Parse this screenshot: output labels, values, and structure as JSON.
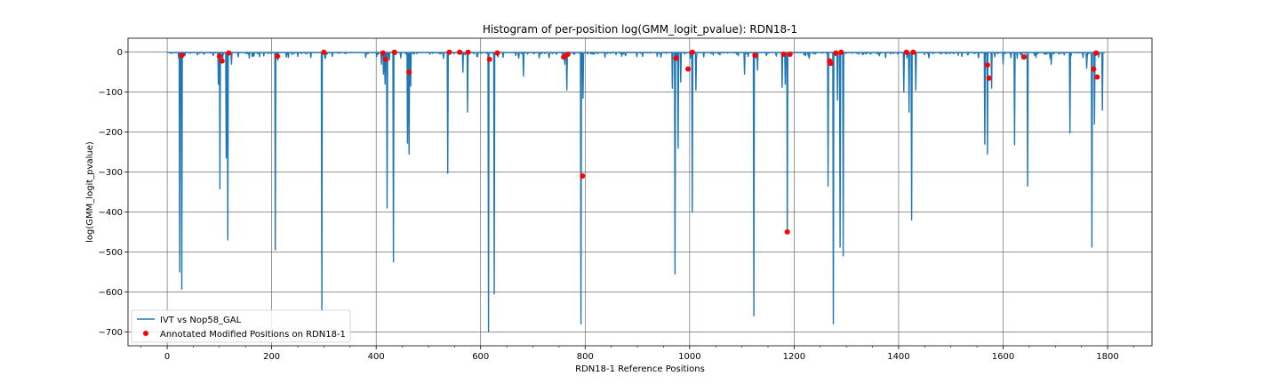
{
  "chart_data": {
    "type": "line",
    "title": "Histogram of per-position log(GMM_logit_pvalue): RDN18-1",
    "xlabel": "RDN18-1 Reference Positions",
    "ylabel": "log(GMM_logit_pvalue)",
    "xlim": [
      -75,
      1885
    ],
    "ylim": [
      -735,
      35
    ],
    "xticks": [
      0,
      200,
      400,
      600,
      800,
      1000,
      1200,
      1400,
      1600,
      1800
    ],
    "yticks": [
      0,
      -100,
      -200,
      -300,
      -400,
      -500,
      -600,
      -700
    ],
    "grid": true,
    "legend_position": "lower-left",
    "series": [
      {
        "name": "IVT vs Nop58_GAL",
        "color": "#1f77b4",
        "baseline": -1,
        "spikes": [
          [
            24,
            -550
          ],
          [
            28,
            -593
          ],
          [
            31,
            -12
          ],
          [
            98,
            -80
          ],
          [
            101,
            -342
          ],
          [
            106,
            -25
          ],
          [
            113,
            -265
          ],
          [
            116,
            -470
          ],
          [
            123,
            -30
          ],
          [
            207,
            -495
          ],
          [
            212,
            -20
          ],
          [
            228,
            -12
          ],
          [
            296,
            -645
          ],
          [
            302,
            -15
          ],
          [
            410,
            -30
          ],
          [
            414,
            -55
          ],
          [
            417,
            -80
          ],
          [
            421,
            -390
          ],
          [
            425,
            -20
          ],
          [
            433,
            -525
          ],
          [
            460,
            -228
          ],
          [
            463,
            -255
          ],
          [
            466,
            -85
          ],
          [
            537,
            -303
          ],
          [
            566,
            -50
          ],
          [
            575,
            -150
          ],
          [
            615,
            -700
          ],
          [
            626,
            -605
          ],
          [
            682,
            -60
          ],
          [
            761,
            -30
          ],
          [
            765,
            -95
          ],
          [
            792,
            -680
          ],
          [
            796,
            -115
          ],
          [
            967,
            -90
          ],
          [
            972,
            -555
          ],
          [
            978,
            -240
          ],
          [
            983,
            -75
          ],
          [
            1005,
            -400
          ],
          [
            1012,
            -95
          ],
          [
            1105,
            -55
          ],
          [
            1123,
            -660
          ],
          [
            1130,
            -45
          ],
          [
            1177,
            -88
          ],
          [
            1183,
            -80
          ],
          [
            1187,
            -450
          ],
          [
            1265,
            -335
          ],
          [
            1275,
            -680
          ],
          [
            1283,
            -120
          ],
          [
            1288,
            -488
          ],
          [
            1294,
            -510
          ],
          [
            1410,
            -100
          ],
          [
            1420,
            -150
          ],
          [
            1425,
            -420
          ],
          [
            1433,
            -95
          ],
          [
            1565,
            -230
          ],
          [
            1570,
            -255
          ],
          [
            1578,
            -90
          ],
          [
            1600,
            -30
          ],
          [
            1622,
            -232
          ],
          [
            1636,
            -15
          ],
          [
            1647,
            -335
          ],
          [
            1692,
            -30
          ],
          [
            1728,
            -202
          ],
          [
            1760,
            -40
          ],
          [
            1770,
            -488
          ],
          [
            1775,
            -180
          ],
          [
            1790,
            -145
          ]
        ]
      },
      {
        "name": "Annotated Modified Positions on RDN18-1",
        "color": "#ff0000",
        "points": [
          [
            28,
            -8
          ],
          [
            100,
            -10
          ],
          [
            105,
            -22
          ],
          [
            118,
            -2
          ],
          [
            211,
            -10
          ],
          [
            300,
            0
          ],
          [
            413,
            -2
          ],
          [
            418,
            -18
          ],
          [
            435,
            0
          ],
          [
            463,
            -50
          ],
          [
            540,
            0
          ],
          [
            560,
            0
          ],
          [
            576,
            0
          ],
          [
            617,
            -18
          ],
          [
            632,
            -2
          ],
          [
            759,
            -12
          ],
          [
            767,
            -5
          ],
          [
            795,
            -310
          ],
          [
            974,
            -15
          ],
          [
            997,
            -42
          ],
          [
            1005,
            0
          ],
          [
            1125,
            -8
          ],
          [
            1180,
            -5
          ],
          [
            1187,
            -450
          ],
          [
            1192,
            -5
          ],
          [
            1268,
            -22
          ],
          [
            1270,
            -28
          ],
          [
            1280,
            -2
          ],
          [
            1290,
            0
          ],
          [
            1415,
            0
          ],
          [
            1428,
            0
          ],
          [
            1570,
            -32
          ],
          [
            1573,
            -65
          ],
          [
            1640,
            -12
          ],
          [
            1773,
            -42
          ],
          [
            1778,
            -2
          ],
          [
            1780,
            -62
          ]
        ]
      }
    ]
  }
}
